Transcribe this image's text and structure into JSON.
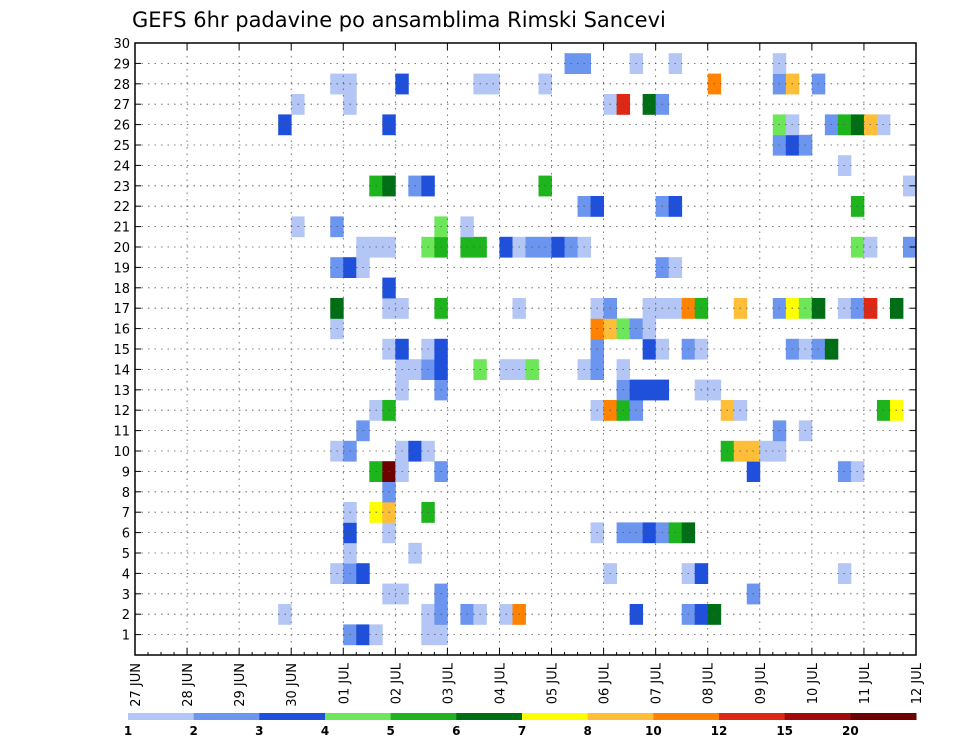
{
  "chart_data": {
    "type": "heatmap",
    "title": "GEFS 6hr padavine po ansamblima Rimski Sancevi",
    "x_ticks": [
      "27 JUN",
      "28 JUN",
      "29 JUN",
      "30 JUN",
      "01 JUL",
      "02 JUL",
      "03 JUL",
      "04 JUL",
      "05 JUL",
      "06 JUL",
      "07 JUL",
      "08 JUL",
      "09 JUL",
      "10 JUL",
      "11 JUL",
      "12 JUL"
    ],
    "y_ticks": [
      "1",
      "2",
      "3",
      "4",
      "5",
      "6",
      "7",
      "8",
      "9",
      "10",
      "11",
      "12",
      "13",
      "14",
      "15",
      "16",
      "17",
      "18",
      "19",
      "20",
      "21",
      "22",
      "23",
      "24",
      "25",
      "26",
      "27",
      "28",
      "29",
      "30"
    ],
    "y_range": [
      0,
      30
    ],
    "x_step_hours": 6,
    "grid": true,
    "colorbar": {
      "boundaries": [
        "1",
        "2",
        "3",
        "4",
        "5",
        "6",
        "7",
        "8",
        "10",
        "12",
        "15",
        "20"
      ],
      "colors": [
        "#b3c6f5",
        "#6b95ee",
        "#1e50dc",
        "#6ee65a",
        "#1eb41e",
        "#006e14",
        "#ffff00",
        "#ffbe37",
        "#ff8200",
        "#dc2814",
        "#a00a0a",
        "#6e0000"
      ]
    },
    "levels": [
      {
        "range": "1-2",
        "color": "#b3c6f5"
      },
      {
        "range": "2-3",
        "color": "#6b95ee"
      },
      {
        "range": "3-4",
        "color": "#1e50dc"
      },
      {
        "range": "4-5",
        "color": "#6ee65a"
      },
      {
        "range": "5-6",
        "color": "#1eb41e"
      },
      {
        "range": "6-7",
        "color": "#006e14"
      },
      {
        "range": "7-8",
        "color": "#ffff00"
      },
      {
        "range": "8-10",
        "color": "#ffbe37"
      },
      {
        "range": "10-12",
        "color": "#ff8200"
      },
      {
        "range": "12-15",
        "color": "#dc2814"
      },
      {
        "range": "15-20",
        "color": "#a00a0a"
      },
      {
        "range": ">20",
        "color": "#6e0000"
      }
    ],
    "cells_note": "each cell: [member, step (6h steps from 27 JUN 00Z), level index 0-11]",
    "cells": [
      [
        1,
        16,
        1
      ],
      [
        1,
        17,
        2
      ],
      [
        1,
        18,
        0
      ],
      [
        1,
        22,
        0
      ],
      [
        1,
        23,
        0
      ],
      [
        2,
        11,
        0
      ],
      [
        2,
        22,
        0
      ],
      [
        2,
        23,
        1
      ],
      [
        2,
        25,
        1
      ],
      [
        2,
        26,
        0
      ],
      [
        2,
        28,
        0
      ],
      [
        2,
        29,
        8
      ],
      [
        2,
        38,
        2
      ],
      [
        2,
        42,
        1
      ],
      [
        2,
        43,
        2
      ],
      [
        2,
        44,
        5
      ],
      [
        3,
        19,
        0
      ],
      [
        3,
        20,
        0
      ],
      [
        3,
        23,
        1
      ],
      [
        3,
        47,
        1
      ],
      [
        4,
        15,
        0
      ],
      [
        4,
        16,
        1
      ],
      [
        4,
        17,
        2
      ],
      [
        4,
        36,
        0
      ],
      [
        4,
        42,
        0
      ],
      [
        4,
        43,
        2
      ],
      [
        4,
        54,
        0
      ],
      [
        5,
        16,
        0
      ],
      [
        5,
        21,
        0
      ],
      [
        6,
        16,
        2
      ],
      [
        6,
        19,
        0
      ],
      [
        6,
        35,
        0
      ],
      [
        6,
        37,
        1
      ],
      [
        6,
        38,
        1
      ],
      [
        6,
        39,
        2
      ],
      [
        6,
        40,
        1
      ],
      [
        6,
        41,
        4
      ],
      [
        6,
        42,
        5
      ],
      [
        7,
        16,
        0
      ],
      [
        7,
        18,
        6
      ],
      [
        7,
        19,
        7
      ],
      [
        7,
        22,
        4
      ],
      [
        8,
        19,
        1
      ],
      [
        9,
        18,
        4
      ],
      [
        9,
        19,
        11
      ],
      [
        9,
        20,
        0
      ],
      [
        9,
        23,
        1
      ],
      [
        9,
        47,
        2
      ],
      [
        9,
        54,
        1
      ],
      [
        9,
        55,
        0
      ],
      [
        10,
        15,
        0
      ],
      [
        10,
        16,
        1
      ],
      [
        10,
        20,
        0
      ],
      [
        10,
        21,
        2
      ],
      [
        10,
        22,
        0
      ],
      [
        10,
        45,
        4
      ],
      [
        10,
        46,
        7
      ],
      [
        10,
        47,
        7
      ],
      [
        10,
        48,
        0
      ],
      [
        10,
        49,
        0
      ],
      [
        11,
        17,
        1
      ],
      [
        11,
        49,
        1
      ],
      [
        11,
        51,
        0
      ],
      [
        12,
        18,
        0
      ],
      [
        12,
        19,
        4
      ],
      [
        12,
        35,
        0
      ],
      [
        12,
        36,
        8
      ],
      [
        12,
        37,
        4
      ],
      [
        12,
        38,
        1
      ],
      [
        12,
        45,
        7
      ],
      [
        12,
        46,
        0
      ],
      [
        12,
        57,
        4
      ],
      [
        12,
        58,
        6
      ],
      [
        13,
        20,
        0
      ],
      [
        13,
        23,
        1
      ],
      [
        13,
        37,
        1
      ],
      [
        13,
        38,
        2
      ],
      [
        13,
        39,
        2
      ],
      [
        13,
        40,
        2
      ],
      [
        13,
        43,
        0
      ],
      [
        13,
        44,
        0
      ],
      [
        14,
        20,
        0
      ],
      [
        14,
        21,
        0
      ],
      [
        14,
        22,
        1
      ],
      [
        14,
        23,
        2
      ],
      [
        14,
        26,
        3
      ],
      [
        14,
        28,
        0
      ],
      [
        14,
        29,
        0
      ],
      [
        14,
        30,
        3
      ],
      [
        14,
        34,
        0
      ],
      [
        14,
        35,
        1
      ],
      [
        14,
        37,
        0
      ],
      [
        15,
        19,
        0
      ],
      [
        15,
        20,
        2
      ],
      [
        15,
        22,
        0
      ],
      [
        15,
        23,
        2
      ],
      [
        15,
        35,
        1
      ],
      [
        15,
        39,
        2
      ],
      [
        15,
        40,
        0
      ],
      [
        15,
        42,
        1
      ],
      [
        15,
        43,
        0
      ],
      [
        15,
        50,
        1
      ],
      [
        15,
        51,
        0
      ],
      [
        15,
        52,
        1
      ],
      [
        15,
        53,
        5
      ],
      [
        16,
        15,
        0
      ],
      [
        16,
        35,
        8
      ],
      [
        16,
        36,
        7
      ],
      [
        16,
        37,
        3
      ],
      [
        16,
        38,
        1
      ],
      [
        16,
        39,
        0
      ],
      [
        17,
        15,
        5
      ],
      [
        17,
        19,
        0
      ],
      [
        17,
        20,
        0
      ],
      [
        17,
        23,
        4
      ],
      [
        17,
        29,
        0
      ],
      [
        17,
        35,
        0
      ],
      [
        17,
        36,
        1
      ],
      [
        17,
        39,
        0
      ],
      [
        17,
        40,
        0
      ],
      [
        17,
        41,
        0
      ],
      [
        17,
        42,
        8
      ],
      [
        17,
        43,
        4
      ],
      [
        17,
        46,
        7
      ],
      [
        17,
        49,
        1
      ],
      [
        17,
        50,
        6
      ],
      [
        17,
        51,
        3
      ],
      [
        17,
        52,
        5
      ],
      [
        17,
        54,
        0
      ],
      [
        17,
        55,
        1
      ],
      [
        17,
        56,
        9
      ],
      [
        17,
        58,
        5
      ],
      [
        18,
        19,
        2
      ],
      [
        19,
        15,
        1
      ],
      [
        19,
        16,
        2
      ],
      [
        19,
        17,
        0
      ],
      [
        19,
        40,
        1
      ],
      [
        19,
        41,
        0
      ],
      [
        20,
        17,
        0
      ],
      [
        20,
        18,
        0
      ],
      [
        20,
        19,
        0
      ],
      [
        20,
        22,
        3
      ],
      [
        20,
        23,
        4
      ],
      [
        20,
        25,
        4
      ],
      [
        20,
        26,
        4
      ],
      [
        20,
        28,
        2
      ],
      [
        20,
        29,
        0
      ],
      [
        20,
        30,
        1
      ],
      [
        20,
        31,
        1
      ],
      [
        20,
        32,
        2
      ],
      [
        20,
        33,
        1
      ],
      [
        20,
        34,
        0
      ],
      [
        20,
        55,
        3
      ],
      [
        20,
        56,
        0
      ],
      [
        20,
        59,
        1
      ],
      [
        21,
        12,
        0
      ],
      [
        21,
        15,
        1
      ],
      [
        21,
        23,
        3
      ],
      [
        21,
        25,
        0
      ],
      [
        22,
        34,
        1
      ],
      [
        22,
        35,
        2
      ],
      [
        22,
        40,
        1
      ],
      [
        22,
        41,
        2
      ],
      [
        22,
        55,
        4
      ],
      [
        23,
        18,
        4
      ],
      [
        23,
        19,
        5
      ],
      [
        23,
        21,
        1
      ],
      [
        23,
        22,
        2
      ],
      [
        23,
        31,
        4
      ],
      [
        23,
        59,
        0
      ],
      [
        24,
        54,
        0
      ],
      [
        25,
        49,
        1
      ],
      [
        25,
        50,
        2
      ],
      [
        25,
        51,
        1
      ],
      [
        26,
        11,
        2
      ],
      [
        26,
        19,
        2
      ],
      [
        26,
        49,
        3
      ],
      [
        26,
        50,
        0
      ],
      [
        26,
        53,
        1
      ],
      [
        26,
        54,
        4
      ],
      [
        26,
        55,
        5
      ],
      [
        26,
        56,
        7
      ],
      [
        26,
        57,
        0
      ],
      [
        27,
        12,
        0
      ],
      [
        27,
        16,
        0
      ],
      [
        27,
        36,
        0
      ],
      [
        27,
        37,
        9
      ],
      [
        27,
        39,
        5
      ],
      [
        27,
        40,
        1
      ],
      [
        28,
        15,
        0
      ],
      [
        28,
        16,
        0
      ],
      [
        28,
        20,
        2
      ],
      [
        28,
        26,
        0
      ],
      [
        28,
        27,
        0
      ],
      [
        28,
        31,
        0
      ],
      [
        28,
        44,
        8
      ],
      [
        28,
        49,
        1
      ],
      [
        28,
        50,
        7
      ],
      [
        28,
        52,
        1
      ],
      [
        29,
        33,
        1
      ],
      [
        29,
        34,
        1
      ],
      [
        29,
        38,
        0
      ],
      [
        29,
        41,
        0
      ],
      [
        29,
        49,
        0
      ]
    ]
  }
}
